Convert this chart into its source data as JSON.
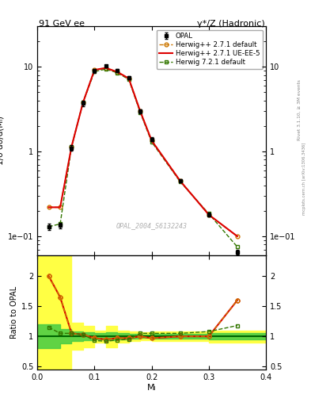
{
  "title_left": "91 GeV ee",
  "title_right": "γ*/Z (Hadronic)",
  "ylabel_main": "1/σ dσ/d(Mₗ)",
  "ylabel_ratio": "Ratio to OPAL",
  "xlabel": "Mₗ",
  "watermark": "OPAL_2004_S6132243",
  "right_label": "Rivet 3.1.10, ≥ 3M events",
  "right_label2": "mcplots.cern.ch [arXiv:1306.3436]",
  "x_data": [
    0.02,
    0.04,
    0.06,
    0.08,
    0.1,
    0.12,
    0.14,
    0.16,
    0.18,
    0.2,
    0.25,
    0.3,
    0.35
  ],
  "opal_y": [
    0.13,
    0.135,
    1.1,
    3.7,
    9.0,
    10.2,
    9.0,
    7.5,
    3.0,
    1.4,
    0.45,
    0.18,
    0.065
  ],
  "opal_yerr": [
    0.01,
    0.01,
    0.08,
    0.25,
    0.45,
    0.4,
    0.35,
    0.3,
    0.15,
    0.07,
    0.02,
    0.01,
    0.004
  ],
  "herwig_default_y": [
    0.22,
    0.22,
    1.15,
    3.8,
    9.2,
    9.7,
    8.7,
    7.3,
    3.0,
    1.35,
    0.45,
    0.18,
    0.1
  ],
  "herwig_ueee5_y": [
    0.22,
    0.22,
    1.15,
    3.8,
    9.2,
    9.7,
    8.7,
    7.3,
    3.0,
    1.35,
    0.45,
    0.18,
    0.1
  ],
  "herwig721_y": [
    0.13,
    0.14,
    1.15,
    3.8,
    8.8,
    9.4,
    8.5,
    7.1,
    2.9,
    1.3,
    0.44,
    0.185,
    0.075
  ],
  "ratio_herwig_default": [
    2.0,
    1.65,
    1.05,
    1.03,
    0.97,
    0.95,
    0.97,
    0.97,
    1.0,
    0.97,
    1.0,
    1.0,
    1.6
  ],
  "ratio_herwig_ueee5": [
    2.0,
    1.65,
    1.05,
    1.03,
    0.97,
    0.95,
    0.97,
    0.97,
    1.0,
    0.97,
    1.0,
    1.0,
    1.6
  ],
  "ratio_herwig721": [
    1.15,
    1.05,
    1.05,
    1.03,
    0.93,
    0.92,
    0.94,
    0.95,
    1.05,
    1.05,
    1.05,
    1.08,
    1.18
  ],
  "band_edges_x": [
    0.0,
    0.02,
    0.04,
    0.06,
    0.08,
    0.1,
    0.12,
    0.14,
    0.16,
    0.18,
    0.2,
    0.25,
    0.3,
    0.35,
    0.4
  ],
  "band_yellow_lo": [
    0.45,
    0.45,
    0.45,
    0.78,
    0.82,
    0.9,
    0.82,
    0.9,
    0.92,
    0.93,
    0.92,
    0.92,
    0.9,
    0.9,
    0.9
  ],
  "band_yellow_hi": [
    2.35,
    2.35,
    2.35,
    1.22,
    1.18,
    1.1,
    1.18,
    1.1,
    1.08,
    1.07,
    1.08,
    1.08,
    1.1,
    1.1,
    1.1
  ],
  "band_green_lo": [
    0.8,
    0.8,
    0.88,
    0.92,
    0.93,
    0.95,
    0.93,
    0.95,
    0.96,
    0.97,
    0.96,
    0.96,
    0.95,
    0.95,
    0.95
  ],
  "band_green_hi": [
    1.2,
    1.2,
    1.12,
    1.08,
    1.07,
    1.05,
    1.07,
    1.05,
    1.04,
    1.03,
    1.04,
    1.04,
    1.05,
    1.05,
    1.05
  ],
  "color_opal": "#000000",
  "color_herwig_default": "#cc7700",
  "color_herwig_ueee5": "#dd0000",
  "color_herwig721": "#337700",
  "color_band_yellow": "#ffff44",
  "color_band_green": "#44cc44",
  "ylim_main": [
    0.06,
    30
  ],
  "ylim_ratio": [
    0.45,
    2.35
  ],
  "xlim": [
    0.0,
    0.4
  ]
}
